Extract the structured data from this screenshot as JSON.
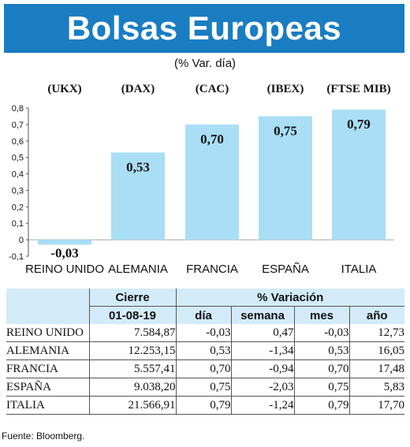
{
  "header": {
    "title": "Bolsas Europeas",
    "subtitle": "(% Var. día)"
  },
  "colors": {
    "banner": "#1a7dc2",
    "bar": "#a9def5",
    "table_header": "#d3ebf8"
  },
  "chart_data": {
    "type": "bar",
    "categories": [
      "REINO UNIDO",
      "ALEMANIA",
      "FRANCIA",
      "ESPAÑA",
      "ITALIA"
    ],
    "indices": [
      "(UKX)",
      "(DAX)",
      "(CAC)",
      "(IBEX)",
      "(FTSE MIB)"
    ],
    "values": [
      -0.03,
      0.53,
      0.7,
      0.75,
      0.79
    ],
    "value_labels": [
      "-0,03",
      "0,53",
      "0,70",
      "0,75",
      "0,79"
    ],
    "ylim": [
      -0.1,
      0.8
    ],
    "yticks": [
      0.8,
      0.7,
      0.6,
      0.5,
      0.4,
      0.3,
      0.2,
      0.1,
      0,
      -0.1
    ],
    "ytick_labels": [
      "0,8",
      "0,7",
      "0,6",
      "0,5",
      "0,4",
      "0,3",
      "0,2",
      "0,1",
      "0",
      "-0,1"
    ],
    "grid": false
  },
  "table": {
    "group_close": "Cierre",
    "group_variation": "% Variación",
    "close_date": "01-08-19",
    "columns": [
      "día",
      "semana",
      "mes",
      "año"
    ],
    "rows": [
      {
        "name": "REINO UNIDO",
        "close": "7.584,87",
        "dia": "-0,03",
        "semana": "0,47",
        "mes": "-0,03",
        "ano": "12,73"
      },
      {
        "name": "ALEMANIA",
        "close": "12.253,15",
        "dia": "0,53",
        "semana": "-1,34",
        "mes": "0,53",
        "ano": "16,05"
      },
      {
        "name": "FRANCIA",
        "close": "5.557,41",
        "dia": "0,70",
        "semana": "-0,94",
        "mes": "0,70",
        "ano": "17,48"
      },
      {
        "name": "ESPAÑA",
        "close": "9.038,20",
        "dia": "0,75",
        "semana": "-2,03",
        "mes": "0,75",
        "ano": "5,83"
      },
      {
        "name": "ITALIA",
        "close": "21.566,91",
        "dia": "0,79",
        "semana": "-1,24",
        "mes": "0,79",
        "ano": "17,70"
      }
    ]
  },
  "footer": {
    "source": "Fuente: Bloomberg."
  }
}
